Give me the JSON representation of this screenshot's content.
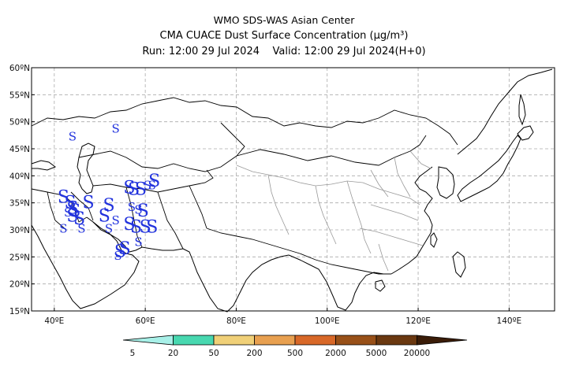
{
  "title": {
    "line1": "WMO SDS-WAS Asian Center",
    "line2": "CMA CUACE Dust Surface Concentration (μg/m³)",
    "line3_run": "Run: 12:00 29 Jul 2024",
    "line3_valid": "Valid: 12:00 29 Jul 2024(H+0)"
  },
  "map": {
    "lon_range": [
      35,
      150
    ],
    "lat_range": [
      15,
      60
    ],
    "lon_ticks": [
      "40ºE",
      "60ºE",
      "80ºE",
      "100ºE",
      "120ºE",
      "140ºE"
    ],
    "lon_tick_values": [
      40,
      60,
      80,
      100,
      120,
      140
    ],
    "lat_ticks": [
      "15ºN",
      "20ºN",
      "25ºN",
      "30ºN",
      "35ºN",
      "40ºN",
      "45ºN",
      "50ºN",
      "55ºN",
      "60ºN"
    ],
    "lat_tick_values": [
      15,
      20,
      25,
      30,
      35,
      40,
      45,
      50,
      55,
      60
    ],
    "gridlines": "dashed",
    "dust_symbol": "S",
    "dust_symbol_color": "#2233dd",
    "dust_markers": [
      {
        "lon": 44,
        "lat": 46.5,
        "size": "small"
      },
      {
        "lon": 53.5,
        "lat": 48,
        "size": "small"
      },
      {
        "lon": 56.5,
        "lat": 36.8,
        "size": "large"
      },
      {
        "lon": 57.5,
        "lat": 36.5,
        "size": "large"
      },
      {
        "lon": 59,
        "lat": 36.5,
        "size": "large"
      },
      {
        "lon": 60.5,
        "lat": 37.5,
        "size": "small"
      },
      {
        "lon": 62,
        "lat": 38,
        "size": "large"
      },
      {
        "lon": 61.5,
        "lat": 37.5,
        "size": "small"
      },
      {
        "lon": 42,
        "lat": 35,
        "size": "large"
      },
      {
        "lon": 43.5,
        "lat": 34,
        "size": "large"
      },
      {
        "lon": 44,
        "lat": 33,
        "size": "large"
      },
      {
        "lon": 44.5,
        "lat": 32.5,
        "size": "large"
      },
      {
        "lon": 43,
        "lat": 32.5,
        "size": "small"
      },
      {
        "lon": 44,
        "lat": 31.5,
        "size": "large"
      },
      {
        "lon": 45.5,
        "lat": 31,
        "size": "large"
      },
      {
        "lon": 47.5,
        "lat": 34,
        "size": "large"
      },
      {
        "lon": 46,
        "lat": 29.5,
        "size": "small"
      },
      {
        "lon": 42,
        "lat": 29.5,
        "size": "small"
      },
      {
        "lon": 52,
        "lat": 33.5,
        "size": "large"
      },
      {
        "lon": 51,
        "lat": 31.5,
        "size": "large"
      },
      {
        "lon": 53.5,
        "lat": 31,
        "size": "small"
      },
      {
        "lon": 57,
        "lat": 33.5,
        "size": "small"
      },
      {
        "lon": 58.5,
        "lat": 33,
        "size": "small"
      },
      {
        "lon": 59.5,
        "lat": 32.5,
        "size": "large"
      },
      {
        "lon": 56.5,
        "lat": 30,
        "size": "large"
      },
      {
        "lon": 58,
        "lat": 29.5,
        "size": "large"
      },
      {
        "lon": 60,
        "lat": 29.5,
        "size": "large"
      },
      {
        "lon": 61.5,
        "lat": 29.5,
        "size": "large"
      },
      {
        "lon": 52,
        "lat": 29.5,
        "size": "small"
      },
      {
        "lon": 58.5,
        "lat": 27,
        "size": "small"
      },
      {
        "lon": 54.5,
        "lat": 25,
        "size": "large"
      },
      {
        "lon": 55.5,
        "lat": 25.5,
        "size": "large"
      },
      {
        "lon": 54,
        "lat": 24.5,
        "size": "small"
      }
    ]
  },
  "colorbar": {
    "labels": [
      "5",
      "20",
      "50",
      "200",
      "500",
      "2000",
      "5000",
      "20000"
    ],
    "colors": [
      "#a8f0e8",
      "#48d8b0",
      "#f0d078",
      "#e8a050",
      "#d86828",
      "#985018",
      "#6a3810",
      "#3a1c08"
    ]
  }
}
